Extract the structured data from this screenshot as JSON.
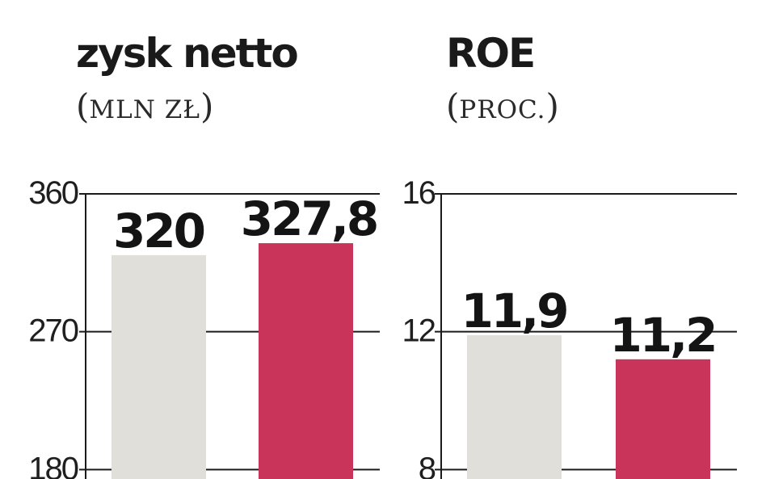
{
  "chart_data": [
    {
      "type": "bar",
      "title": "zysk netto",
      "subtitle": "MLN ZŁ",
      "categories": [
        "",
        ""
      ],
      "values": [
        320,
        327.8
      ],
      "value_labels": [
        "320",
        "327,8"
      ],
      "bar_colors": [
        "#e0dfda",
        "#c8345a"
      ],
      "yticks": [
        180,
        270,
        360
      ],
      "ytick_labels": [
        "180",
        "270",
        "360"
      ],
      "ylim": [
        90,
        360
      ],
      "grid": true,
      "legend": "none"
    },
    {
      "type": "bar",
      "title": "ROE",
      "subtitle": "PROC.",
      "categories": [
        "",
        ""
      ],
      "values": [
        11.9,
        11.2
      ],
      "value_labels": [
        "11,9",
        "11,2"
      ],
      "bar_colors": [
        "#e0dfda",
        "#c8345a"
      ],
      "yticks": [
        8,
        12,
        16
      ],
      "ytick_labels": [
        "8",
        "12",
        "16"
      ],
      "ylim": [
        4,
        16
      ],
      "grid": true,
      "legend": "none"
    }
  ]
}
